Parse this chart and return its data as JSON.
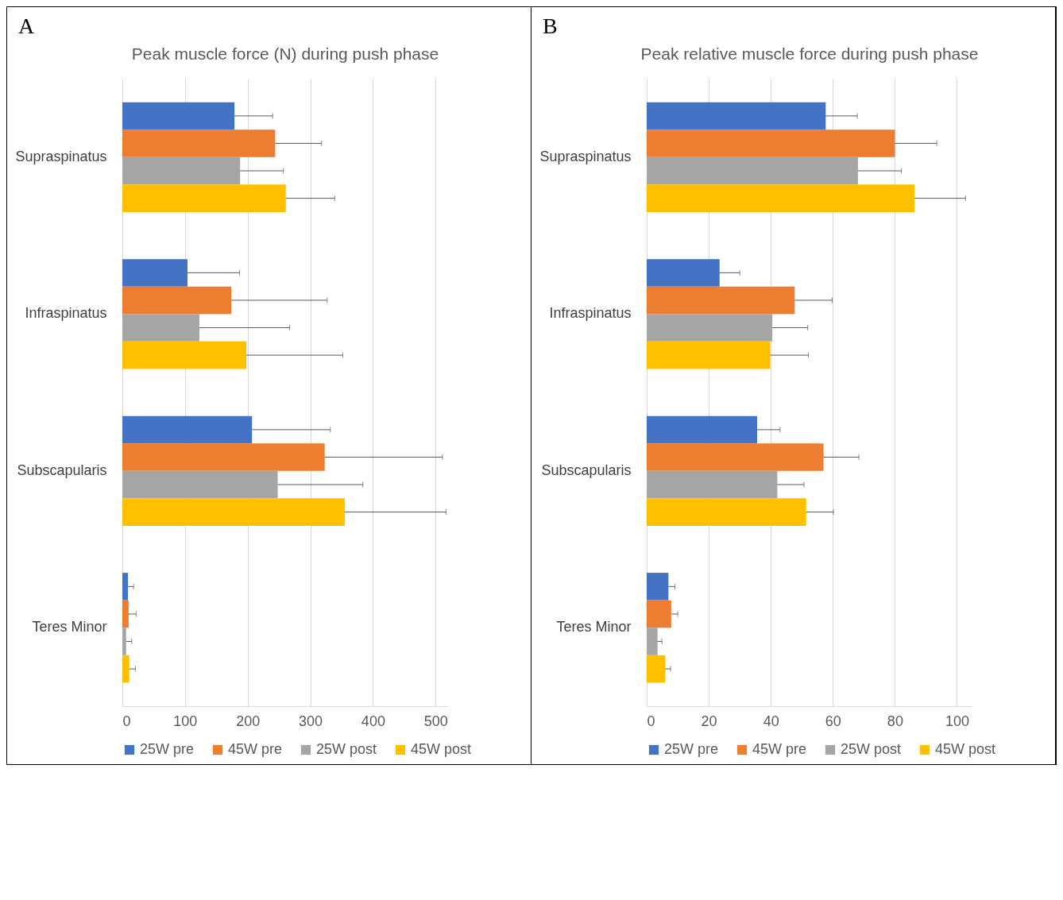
{
  "chart_data": [
    {
      "type": "bar",
      "orientation": "horizontal",
      "title": "Peak muscle force (N) during push phase",
      "annotations": [
        "A"
      ],
      "categories": [
        "Supraspinatus",
        "Infraspinatus",
        "Subscapularis",
        "Teres Minor"
      ],
      "series": [
        {
          "name": "25W pre",
          "color": "#4472c4",
          "values": [
            179,
            104,
            207,
            9
          ],
          "errors": [
            [
              179,
              240
            ],
            [
              104,
              187
            ],
            [
              207,
              332
            ],
            [
              9,
              18
            ]
          ]
        },
        {
          "name": "45W pre",
          "color": "#ed7d31",
          "values": [
            244,
            174,
            323,
            10
          ],
          "errors": [
            [
              244,
              318
            ],
            [
              174,
              327
            ],
            [
              323,
              511
            ],
            [
              10,
              22
            ]
          ]
        },
        {
          "name": "25W post",
          "color": "#a5a5a5",
          "values": [
            188,
            123,
            248,
            6
          ],
          "errors": [
            [
              188,
              257
            ],
            [
              123,
              267
            ],
            [
              248,
              384
            ],
            [
              6,
              15
            ]
          ]
        },
        {
          "name": "45W post",
          "color": "#ffc000",
          "values": [
            261,
            198,
            355,
            11
          ],
          "errors": [
            [
              261,
              339
            ],
            [
              198,
              352
            ],
            [
              355,
              517
            ],
            [
              11,
              21
            ]
          ]
        }
      ],
      "xlim": [
        0,
        520
      ],
      "xticks": [
        0,
        100,
        200,
        300,
        400,
        500
      ],
      "grid": "x",
      "legend": "bottom"
    },
    {
      "type": "bar",
      "orientation": "horizontal",
      "title": "Peak relative muscle force during push phase",
      "annotations": [
        "B"
      ],
      "categories": [
        "Supraspinatus",
        "Infraspinatus",
        "Subscapularis",
        "Teres Minor"
      ],
      "series": [
        {
          "name": "25W pre",
          "color": "#4472c4",
          "values": [
            57.7,
            23.5,
            35.6,
            7
          ],
          "errors": [
            [
              57.7,
              67.9
            ],
            [
              23.5,
              30
            ],
            [
              35.6,
              43
            ],
            [
              7,
              9.1
            ]
          ]
        },
        {
          "name": "45W pre",
          "color": "#ed7d31",
          "values": [
            80,
            47.7,
            57,
            7.9
          ],
          "errors": [
            [
              80,
              93.5
            ],
            [
              47.7,
              59.8
            ],
            [
              57,
              68.4
            ],
            [
              7.9,
              10
            ]
          ]
        },
        {
          "name": "25W post",
          "color": "#a5a5a5",
          "values": [
            68.1,
            40.5,
            42.1,
            3.5
          ],
          "errors": [
            [
              68.1,
              82.1
            ],
            [
              40.5,
              51.9
            ],
            [
              42.1,
              50.7
            ],
            [
              3.5,
              4.9
            ]
          ]
        },
        {
          "name": "45W post",
          "color": "#ffc000",
          "values": [
            86.3,
            39.8,
            51.4,
            6
          ],
          "errors": [
            [
              86.3,
              102.8
            ],
            [
              39.8,
              52.1
            ],
            [
              51.4,
              60.2
            ],
            [
              6,
              7.7
            ]
          ]
        }
      ],
      "xlim": [
        0,
        105
      ],
      "xticks": [
        0,
        20,
        40,
        60,
        80,
        100
      ],
      "grid": "x",
      "legend": "bottom"
    }
  ]
}
